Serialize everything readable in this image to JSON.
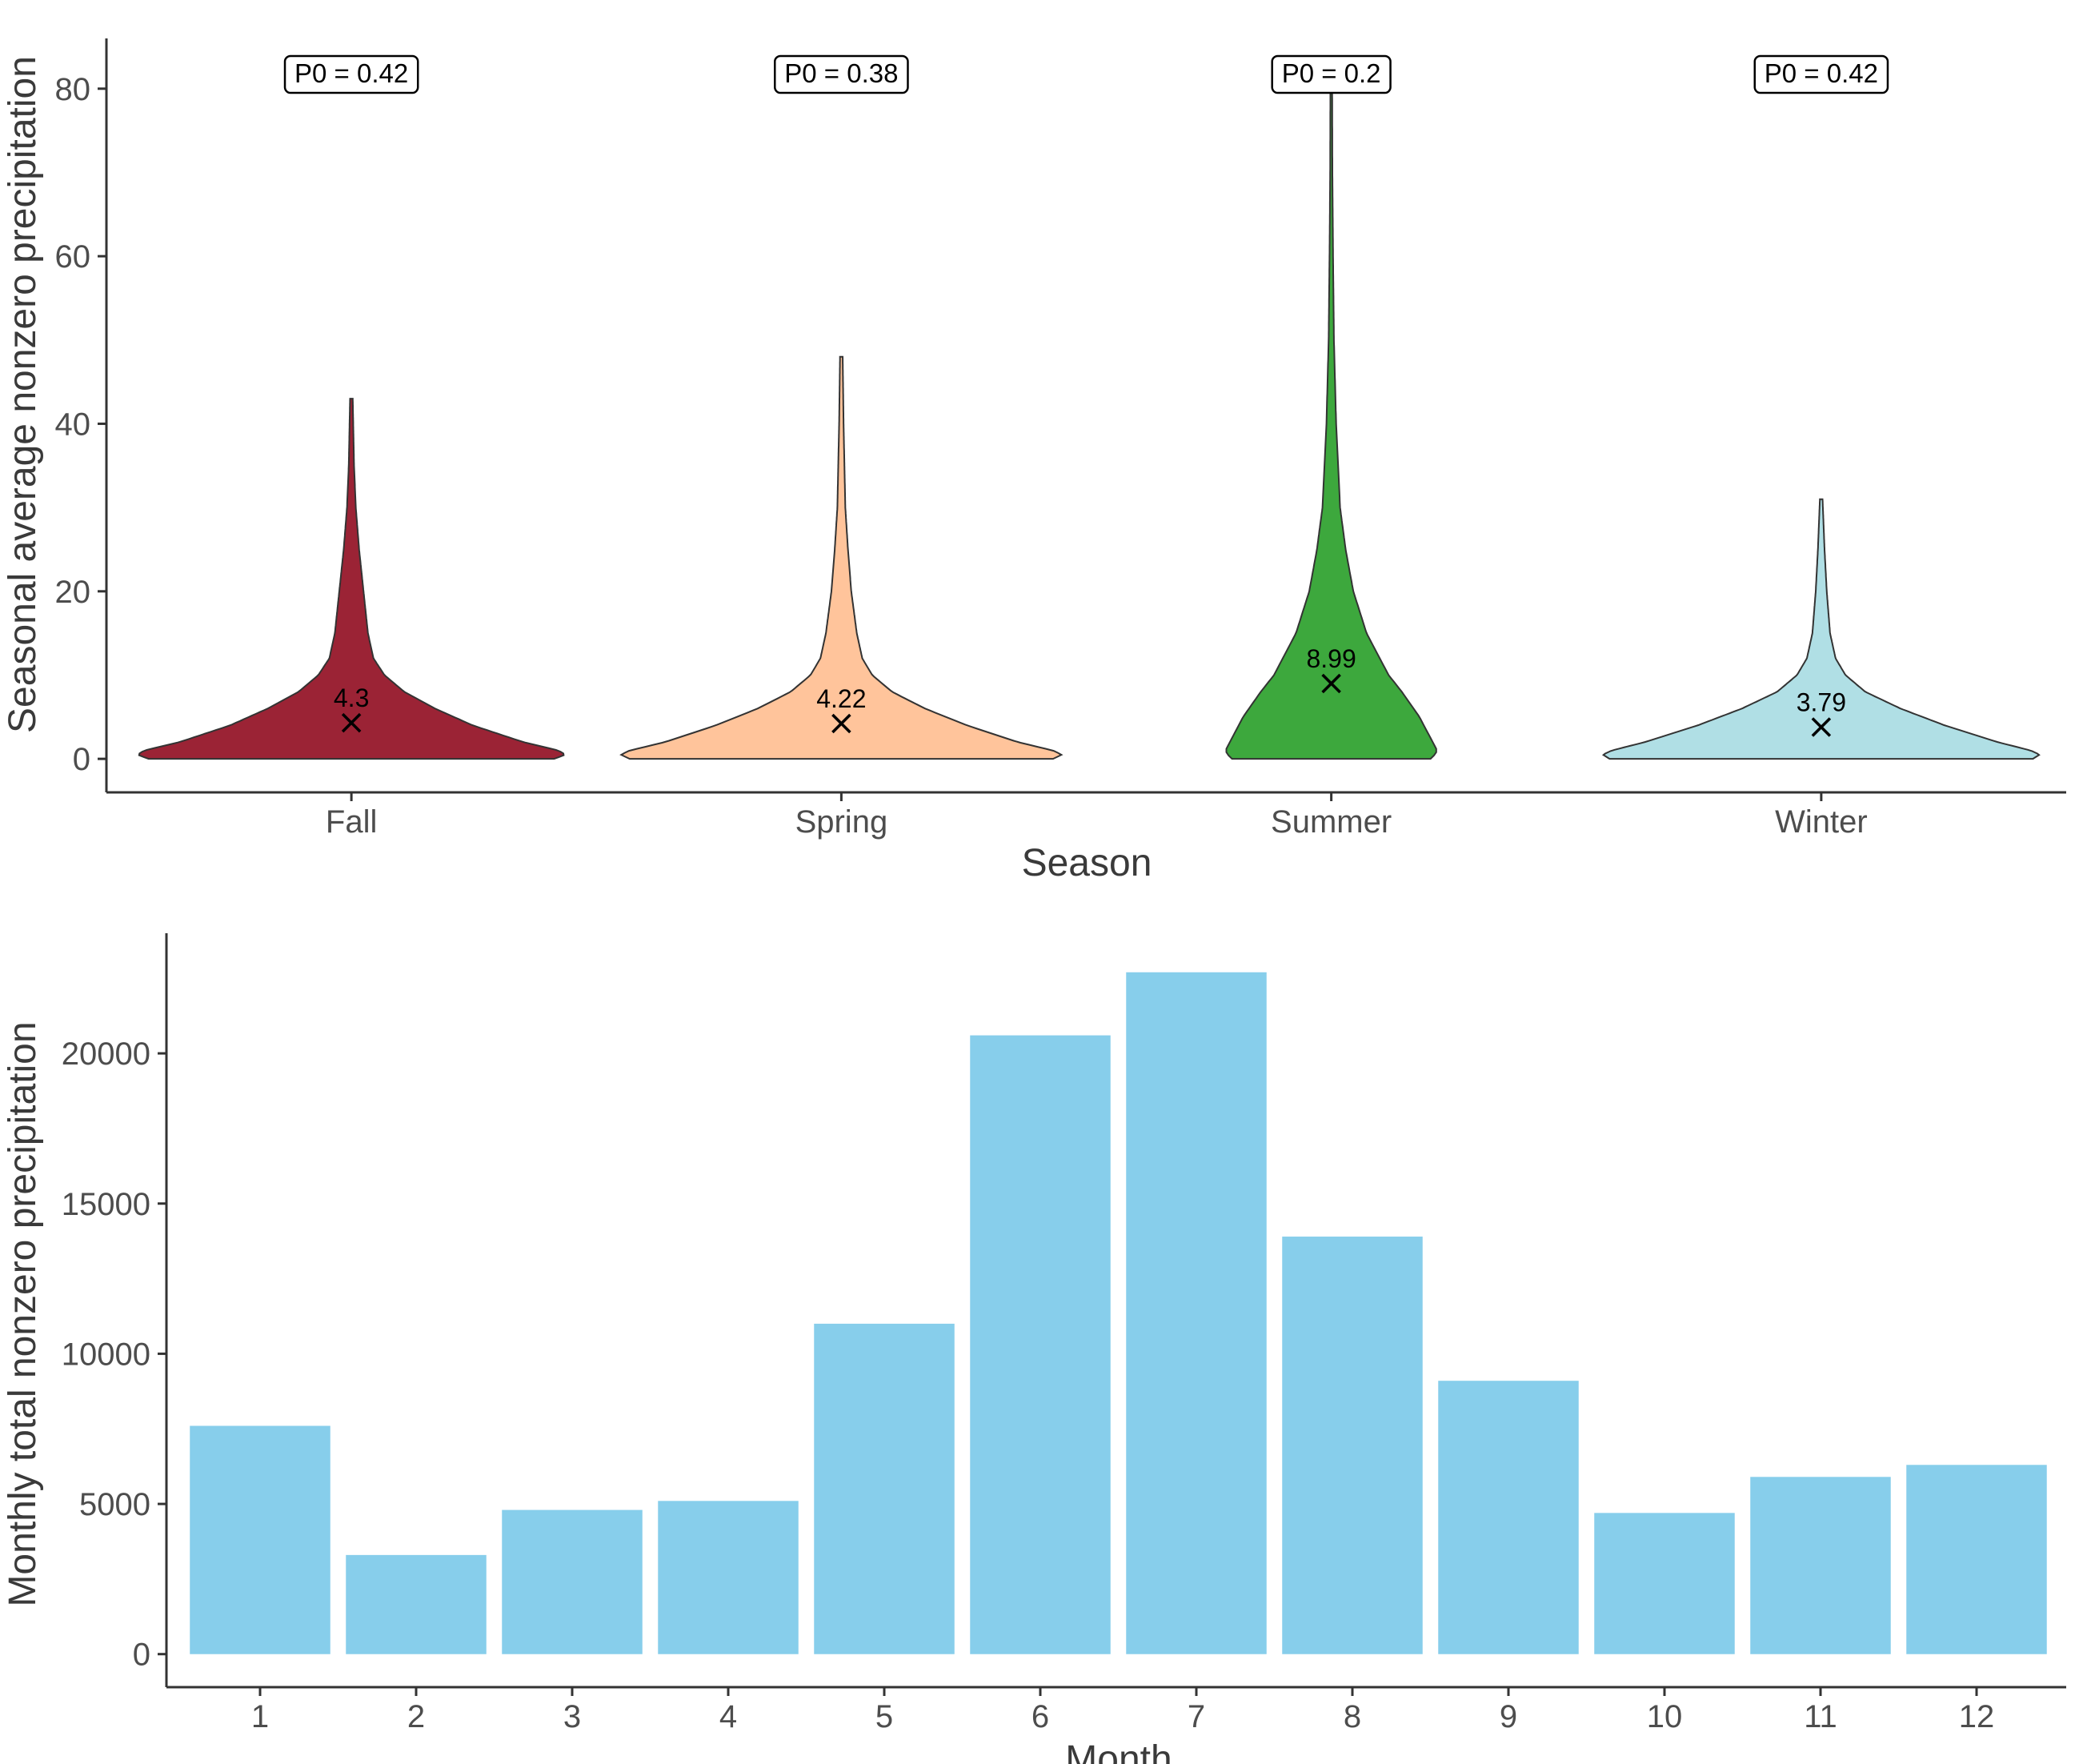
{
  "chart_data": [
    {
      "type": "violin",
      "xlabel": "Season",
      "ylabel": "Seasonal average nonzero precipitation",
      "ylim": [
        -4,
        86
      ],
      "yticks": [
        0,
        20,
        40,
        60,
        80
      ],
      "grid": false,
      "legend": "none",
      "categories": [
        "Fall",
        "Spring",
        "Summer",
        "Winter"
      ],
      "series": [
        {
          "category": "Fall",
          "color": "#9b2335",
          "p0_label": "P0 = 0.42",
          "median": 4.3,
          "median_label": "4.3",
          "max": 43,
          "profile": [
            [
              0,
              0.92
            ],
            [
              0.5,
              0.97
            ],
            [
              1,
              0.94
            ],
            [
              2,
              0.78
            ],
            [
              4,
              0.55
            ],
            [
              6,
              0.38
            ],
            [
              8,
              0.24
            ],
            [
              10,
              0.15
            ],
            [
              12,
              0.1
            ],
            [
              15,
              0.075
            ],
            [
              20,
              0.055
            ],
            [
              25,
              0.035
            ],
            [
              30,
              0.02
            ],
            [
              35,
              0.012
            ],
            [
              43,
              0.006
            ]
          ]
        },
        {
          "category": "Spring",
          "color": "#ffc49b",
          "p0_label": "P0 = 0.38",
          "median": 4.22,
          "median_label": "4.22",
          "max": 48,
          "profile": [
            [
              0,
              0.96
            ],
            [
              0.5,
              1.0
            ],
            [
              1,
              0.96
            ],
            [
              2,
              0.8
            ],
            [
              4,
              0.57
            ],
            [
              6,
              0.38
            ],
            [
              8,
              0.23
            ],
            [
              10,
              0.14
            ],
            [
              12,
              0.095
            ],
            [
              15,
              0.07
            ],
            [
              20,
              0.045
            ],
            [
              25,
              0.03
            ],
            [
              30,
              0.018
            ],
            [
              40,
              0.01
            ],
            [
              48,
              0.006
            ]
          ]
        },
        {
          "category": "Summer",
          "color": "#3da83d",
          "p0_label": "P0 = 0.2",
          "median": 8.99,
          "median_label": "8.99",
          "max": 80,
          "profile": [
            [
              0,
              0.45
            ],
            [
              0.5,
              0.47
            ],
            [
              1,
              0.48
            ],
            [
              2,
              0.46
            ],
            [
              5,
              0.4
            ],
            [
              8,
              0.32
            ],
            [
              10,
              0.26
            ],
            [
              15,
              0.16
            ],
            [
              20,
              0.1
            ],
            [
              25,
              0.065
            ],
            [
              30,
              0.04
            ],
            [
              40,
              0.022
            ],
            [
              50,
              0.012
            ],
            [
              60,
              0.008
            ],
            [
              70,
              0.005
            ],
            [
              80,
              0.004
            ]
          ]
        },
        {
          "category": "Winter",
          "color": "#b0dfe5",
          "p0_label": "P0 = 0.42",
          "median": 3.79,
          "median_label": "3.79",
          "max": 31,
          "profile": [
            [
              0,
              0.96
            ],
            [
              0.5,
              0.99
            ],
            [
              1,
              0.95
            ],
            [
              2,
              0.8
            ],
            [
              4,
              0.56
            ],
            [
              6,
              0.36
            ],
            [
              8,
              0.2
            ],
            [
              10,
              0.11
            ],
            [
              12,
              0.065
            ],
            [
              15,
              0.04
            ],
            [
              20,
              0.025
            ],
            [
              25,
              0.015
            ],
            [
              31,
              0.006
            ]
          ]
        }
      ]
    },
    {
      "type": "bar",
      "xlabel": "Month",
      "ylabel": "Monthly total nonzero precipitation",
      "ylim": [
        -1100,
        24000
      ],
      "yticks": [
        0,
        5000,
        10000,
        15000,
        20000
      ],
      "grid": false,
      "legend": "none",
      "bar_color": "#87ceeb",
      "categories": [
        "1",
        "2",
        "3",
        "4",
        "5",
        "6",
        "7",
        "8",
        "9",
        "10",
        "11",
        "12"
      ],
      "values": [
        7600,
        3300,
        4800,
        5100,
        11000,
        20600,
        22700,
        13900,
        9100,
        4700,
        5900,
        6300
      ]
    }
  ]
}
